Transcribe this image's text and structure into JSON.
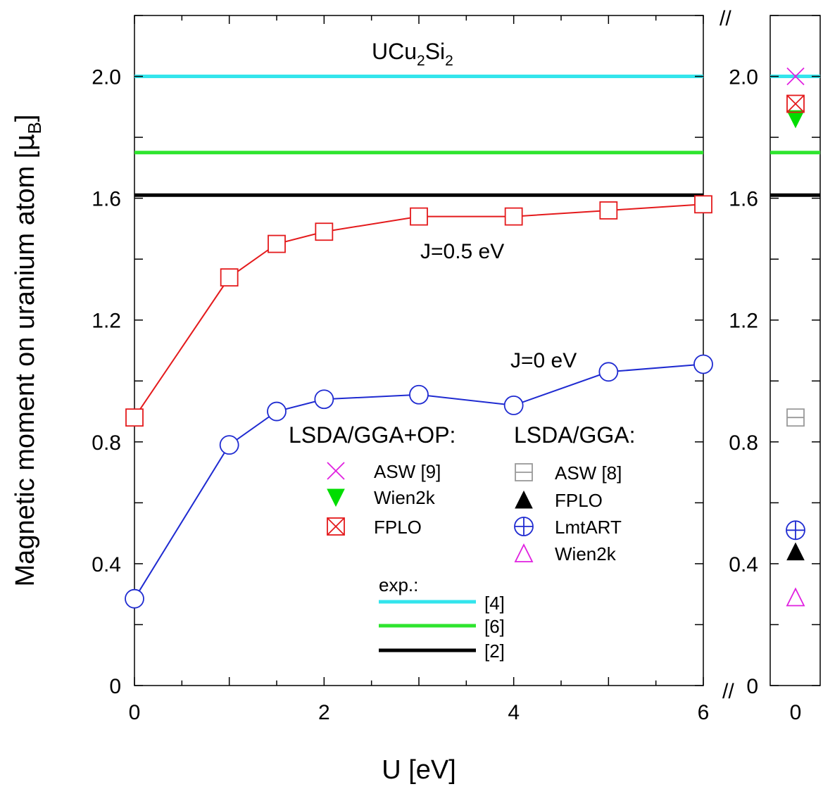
{
  "chart_data": {
    "type": "line",
    "title": "UCu",
    "title_sub1": "2",
    "title_mid": "Si",
    "title_sub2": "2",
    "xlabel": "U [eV]",
    "ylabel_main": "Magnetic moment on uranium atom [",
    "ylabel_mu": "μ",
    "ylabel_sub": "B",
    "ylabel_end": "]",
    "xlim": [
      0,
      6
    ],
    "ylim": [
      0,
      2.2
    ],
    "xticks": [
      "0",
      "2",
      "4",
      "6"
    ],
    "yticks": [
      "0",
      "0.4",
      "0.8",
      "1.2",
      "1.6",
      "2.0"
    ],
    "grid": false,
    "series": [
      {
        "label": "J=0.5 eV",
        "color": "#e41a1c",
        "marker": "square",
        "x": [
          0,
          1,
          1.5,
          2,
          3,
          4,
          5,
          6
        ],
        "y": [
          0.88,
          1.34,
          1.45,
          1.49,
          1.54,
          1.54,
          1.56,
          1.58
        ]
      },
      {
        "label": "J=0 eV",
        "color": "#1f2bd1",
        "marker": "circle",
        "x": [
          0,
          1,
          1.5,
          2,
          3,
          4,
          5,
          6
        ],
        "y": [
          0.285,
          0.79,
          0.9,
          0.94,
          0.955,
          0.92,
          1.03,
          1.055
        ]
      }
    ],
    "experiment": [
      {
        "ref": "[4]",
        "y": 2.0,
        "color": "#33e5ec"
      },
      {
        "ref": "[6]",
        "y": 1.75,
        "color": "#2ee52e"
      },
      {
        "ref": "[2]",
        "y": 1.61,
        "color": "#000000"
      }
    ],
    "side_panel": {
      "xtick": "0",
      "break_mark": "//",
      "points": [
        {
          "method": "ASW [9]",
          "group": "op",
          "marker": "x",
          "color": "#e020e0",
          "y": 2.0
        },
        {
          "method": "Wien2k",
          "group": "op",
          "marker": "triangle-down",
          "color": "#00dd00",
          "y": 1.86
        },
        {
          "method": "FPLO",
          "group": "op",
          "marker": "square-x",
          "color": "#e41a1c",
          "y": 1.91
        },
        {
          "method": "ASW [8]",
          "group": "lsda",
          "marker": "square-minus",
          "color": "#999999",
          "y": 0.88
        },
        {
          "method": "FPLO",
          "group": "lsda",
          "marker": "triangle-up-filled",
          "color": "#000000",
          "y": 0.44
        },
        {
          "method": "LmtART",
          "group": "lsda",
          "marker": "circle-plus",
          "color": "#1f2bd1",
          "y": 0.51
        },
        {
          "method": "Wien2k",
          "group": "lsda",
          "marker": "triangle-up",
          "color": "#e020e0",
          "y": 0.29
        }
      ]
    },
    "legend": {
      "op_header": "LSDA/GGA+OP:",
      "lsda_header": "LSDA/GGA:",
      "exp_header": "exp.:",
      "op_items": [
        {
          "label": "ASW [9]",
          "marker": "x",
          "color": "#e020e0"
        },
        {
          "label": "Wien2k",
          "marker": "triangle-down",
          "color": "#00dd00"
        },
        {
          "label": "FPLO",
          "marker": "square-x",
          "color": "#e41a1c"
        }
      ],
      "lsda_items": [
        {
          "label": "ASW [8]",
          "marker": "square-minus",
          "color": "#999999"
        },
        {
          "label": "FPLO",
          "marker": "triangle-up-filled",
          "color": "#000000"
        },
        {
          "label": "LmtART",
          "marker": "circle-plus",
          "color": "#1f2bd1"
        },
        {
          "label": "Wien2k",
          "marker": "triangle-up",
          "color": "#e020e0"
        }
      ]
    }
  }
}
